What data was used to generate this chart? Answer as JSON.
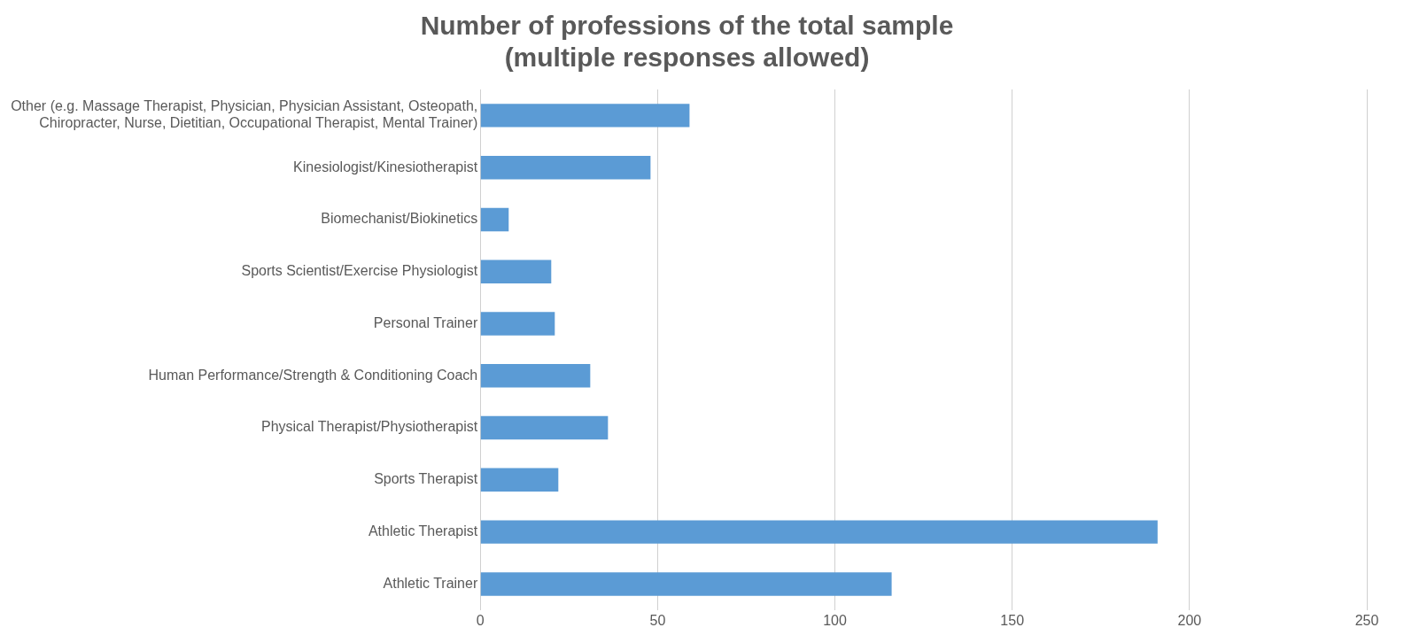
{
  "chart_data": {
    "type": "bar",
    "orientation": "horizontal",
    "title": "Number of professions of the total sample (multiple responses allowed)",
    "categories": [
      "Other (e.g. Massage Therapist, Physician, Physician Assistant, Osteopath, Chiropracter, Nurse, Dietitian, Occupational Therapist, Mental Trainer)",
      "Kinesiologist/Kinesiotherapist",
      "Biomechanist/Biokinetics",
      "Sports Scientist/Exercise Physiologist",
      "Personal Trainer",
      "Human Performance/Strength & Conditioning Coach",
      "Physical Therapist/Physiotherapist",
      "Sports Therapist",
      "Athletic Therapist",
      "Athletic Trainer"
    ],
    "values": [
      59,
      48,
      8,
      20,
      21,
      31,
      36,
      22,
      191,
      116
    ],
    "color": "#5b9bd5",
    "xlim": [
      0,
      250
    ],
    "xticks": [
      0,
      50,
      100,
      150,
      200,
      250
    ],
    "grid": "x"
  }
}
